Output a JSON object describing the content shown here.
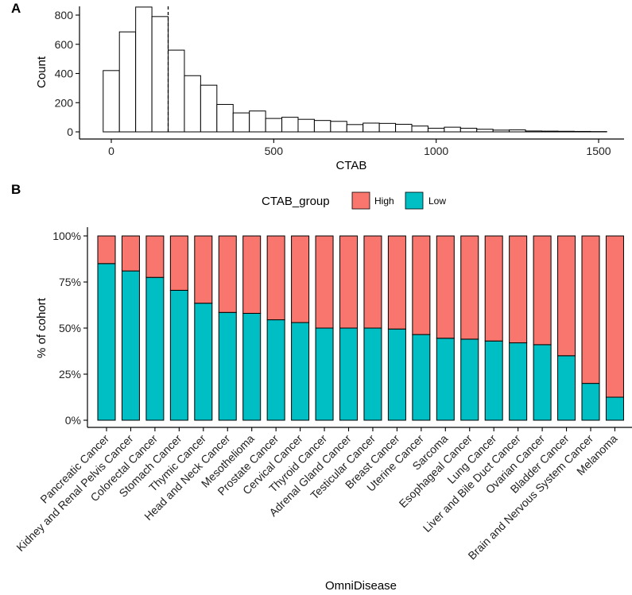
{
  "chart_data": [
    {
      "panel": "A",
      "type": "bar",
      "subtype": "histogram",
      "xlabel": "CTAB",
      "ylabel": "Count",
      "xlim": [
        -50,
        1520
      ],
      "ylim": [
        0,
        860
      ],
      "x_ticks": [
        0,
        500,
        1000,
        1500
      ],
      "y_ticks": [
        0,
        200,
        400,
        600,
        800
      ],
      "bin_start": -25,
      "bin_width": 50,
      "counts": [
        420,
        685,
        855,
        790,
        560,
        385,
        320,
        188,
        130,
        143,
        92,
        100,
        86,
        78,
        72,
        50,
        60,
        58,
        52,
        40,
        25,
        32,
        25,
        18,
        12,
        14,
        6,
        5,
        4,
        3,
        2
      ],
      "cutoff_line": 175
    },
    {
      "panel": "B",
      "type": "bar",
      "subtype": "stacked-percent",
      "xlabel": "OmniDisease",
      "ylabel": "% of cohort",
      "legend_title": "CTAB_group",
      "legend_position": "top",
      "y_ticks": [
        "0%",
        "25%",
        "50%",
        "75%",
        "100%"
      ],
      "categories": [
        "Pancreatic Cancer",
        "Kidney and Renal Pelvis Cancer",
        "Colorectal Cancer",
        "Stomach Cancer",
        "Thymic Cancer",
        "Head and Neck Cancer",
        "Mesothelioma",
        "Prostate Cancer",
        "Cervical Cancer",
        "Thyroid Cancer",
        "Adrenal Gland Cancer",
        "Testicular Cancer",
        "Breast Cancer",
        "Uterine Cancer",
        "Sarcoma",
        "Esophageal Cancer",
        "Lung Cancer",
        "Liver and Bile Duct Cancer",
        "Ovarian Cancer",
        "Bladder Cancer",
        "Brain and Nervous System Cancer",
        "Melanoma"
      ],
      "series": [
        {
          "name": "High",
          "color": "#F8766D",
          "values": [
            15,
            19,
            22.5,
            29.5,
            36.5,
            41.5,
            42,
            45.5,
            47,
            50,
            50,
            50,
            50.5,
            53.5,
            55.5,
            56,
            57,
            58,
            59,
            65,
            80,
            87.5
          ]
        },
        {
          "name": "Low",
          "color": "#00BFC4",
          "values": [
            85,
            81,
            77.5,
            70.5,
            63.5,
            58.5,
            58,
            54.5,
            53,
            50,
            50,
            50,
            49.5,
            46.5,
            44.5,
            44,
            43,
            42,
            41,
            35,
            20,
            12.5
          ]
        }
      ]
    }
  ]
}
